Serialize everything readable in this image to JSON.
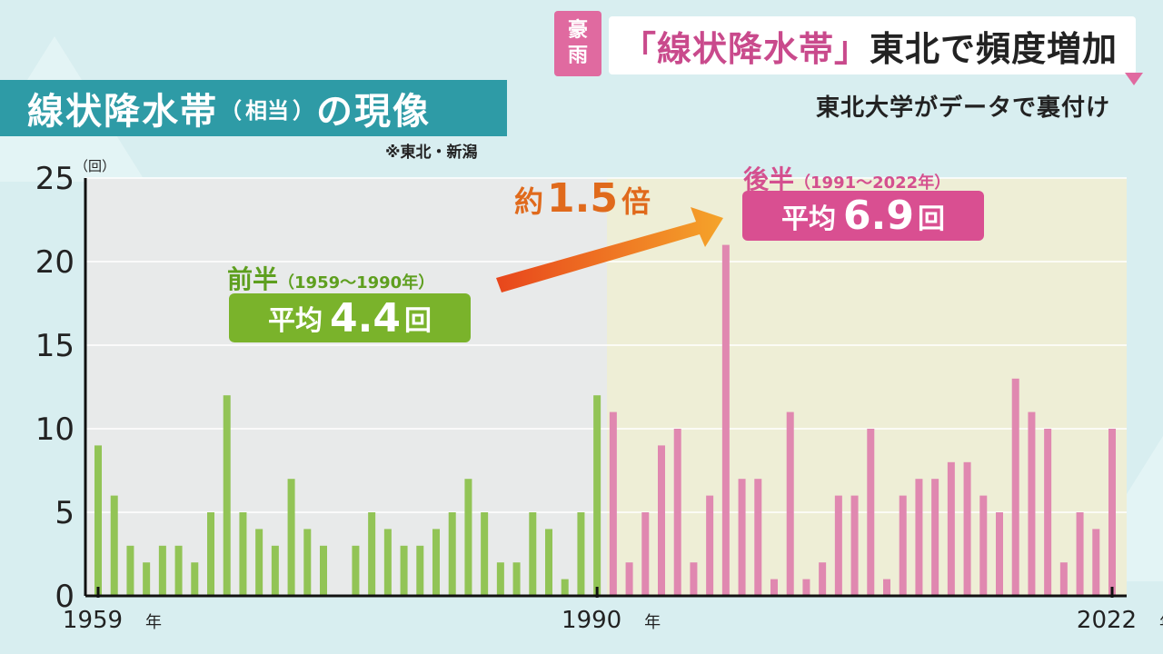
{
  "header": {
    "tag_line1": "豪",
    "tag_line2": "雨",
    "headline_open": "「",
    "headline_keyword": "線状降水帯",
    "headline_close": "」",
    "headline_rest": "東北で頻度増加",
    "subheadline": "東北大学がデータで裏付け"
  },
  "title": {
    "main": "線状降水帯",
    "paren_open": "（",
    "paren_text": "相当",
    "paren_close": "）",
    "rest": "の現像",
    "region_note": "※東北・新潟"
  },
  "callouts": {
    "first_half_label": "前半",
    "first_half_range": "（1959～1990年）",
    "first_half_avg_prefix": "平均",
    "first_half_avg_value": "4.4",
    "first_half_avg_unit": "回",
    "second_half_label": "後半",
    "second_half_range": "（1991～2022年）",
    "second_half_avg_prefix": "平均",
    "second_half_avg_value": "6.9",
    "second_half_avg_unit": "回",
    "ratio_prefix": "約",
    "ratio_value": "1.5",
    "ratio_suffix": "倍"
  },
  "colors": {
    "first_half_bar": "#92c456",
    "second_half_bar": "#e088b0",
    "first_half_bg": "#e8eaea",
    "second_half_bg": "#eeeed6",
    "arrow_start": "#e8461c",
    "arrow_end": "#f5a42a"
  },
  "chart_data": {
    "type": "bar",
    "y_unit": "（回）",
    "ylim": [
      0,
      25
    ],
    "yticks": [
      "0",
      "5",
      "10",
      "15",
      "20",
      "25"
    ],
    "grid": true,
    "x_start_year": 1959,
    "x_end_year": 2022,
    "x_tick_labels": [
      {
        "year": 1959,
        "text": "1959",
        "suffix": "年"
      },
      {
        "year": 1990,
        "text": "1990",
        "suffix": "年"
      },
      {
        "year": 2022,
        "text": "2022",
        "suffix": "年"
      }
    ],
    "series": [
      {
        "period": "first_half",
        "years": [
          1959,
          1960,
          1961,
          1962,
          1963,
          1964,
          1965,
          1966,
          1967,
          1968,
          1969,
          1970,
          1971,
          1972,
          1973,
          1974,
          1975,
          1976,
          1977,
          1978,
          1979,
          1980,
          1981,
          1982,
          1983,
          1984,
          1985,
          1986,
          1987,
          1988,
          1989,
          1990
        ],
        "values": [
          9,
          6,
          3,
          2,
          3,
          3,
          2,
          5,
          12,
          5,
          4,
          3,
          7,
          4,
          3,
          0,
          3,
          5,
          4,
          3,
          3,
          4,
          5,
          7,
          5,
          2,
          2,
          5,
          4,
          1,
          5,
          12
        ]
      },
      {
        "period": "second_half",
        "years": [
          1991,
          1992,
          1993,
          1994,
          1995,
          1996,
          1997,
          1998,
          1999,
          2000,
          2001,
          2002,
          2003,
          2004,
          2005,
          2006,
          2007,
          2008,
          2009,
          2010,
          2011,
          2012,
          2013,
          2014,
          2015,
          2016,
          2017,
          2018,
          2019,
          2020,
          2021,
          2022
        ],
        "values": [
          11,
          2,
          5,
          9,
          10,
          2,
          6,
          21,
          7,
          7,
          1,
          11,
          1,
          2,
          6,
          6,
          10,
          1,
          6,
          7,
          7,
          8,
          8,
          6,
          5,
          13,
          11,
          10,
          2,
          5,
          4,
          10
        ]
      }
    ]
  }
}
